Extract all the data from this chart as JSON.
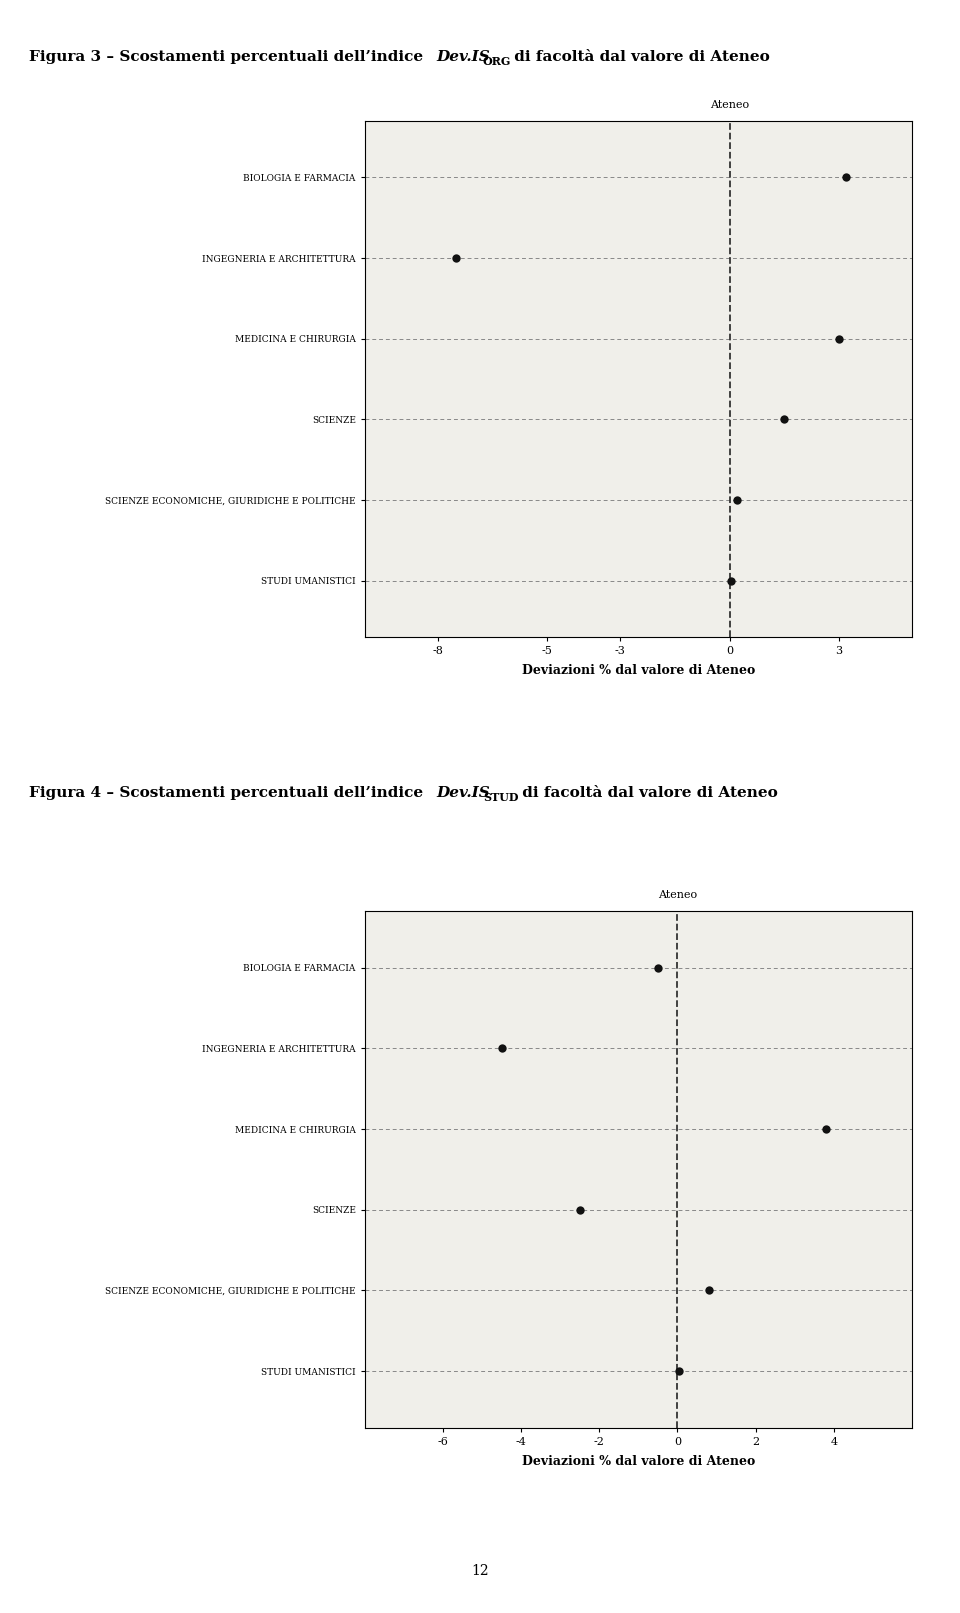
{
  "fig3": {
    "title_plain": "Figura 3 – Scostamenti percentuali dell’indice ",
    "title_italic": "Dev.IS",
    "title_sub": "ORG",
    "title_end": " di facoltà dal valore di Ateneo",
    "categories": [
      "BIOLOGIA E FARMACIA",
      "INGEGNERIA E ARCHITETTURA",
      "MEDICINA E CHIRURGIA",
      "SCIENZE",
      "SCIENZE ECONOMICHE, GIURIDICHE E POLITICHE",
      "STUDI UMANISTICI"
    ],
    "values": [
      3.2,
      -7.5,
      3.0,
      1.5,
      0.2,
      0.05
    ],
    "xlim": [
      -10,
      5
    ],
    "xticks": [
      -8,
      -5,
      -3,
      0,
      3
    ],
    "xlabel": "Deviazioni % dal valore di Ateneo",
    "ateneo_label": "Ateneo"
  },
  "fig4": {
    "title_plain": "Figura 4 – Scostamenti percentuali dell’indice ",
    "title_italic": "Dev.IS",
    "title_sub": "STUD",
    "title_end": " di facoltà dal valore di Ateneo",
    "categories": [
      "BIOLOGIA E FARMACIA",
      "INGEGNERIA E ARCHITETTURA",
      "MEDICINA E CHIRURGIA",
      "SCIENZE",
      "SCIENZE ECONOMICHE, GIURIDICHE E POLITICHE",
      "STUDI UMANISTICI"
    ],
    "values": [
      -0.5,
      -4.5,
      3.8,
      -2.5,
      0.8,
      0.05
    ],
    "xlim": [
      -8,
      6
    ],
    "xticks": [
      -6,
      -4,
      -2,
      0,
      2,
      4
    ],
    "xlabel": "Deviazioni % dal valore di Ateneo",
    "ateneo_label": "Ateneo"
  },
  "panel_bg_color": "#dce9f5",
  "plot_bg_color": "#f0efea",
  "dot_color": "#111111",
  "horiz_line_color": "#888888",
  "vert_dash_color": "#333333",
  "page_number": "12",
  "title_fontsize": 11,
  "cat_fontsize": 6.5,
  "tick_fontsize": 8,
  "xlabel_fontsize": 9
}
